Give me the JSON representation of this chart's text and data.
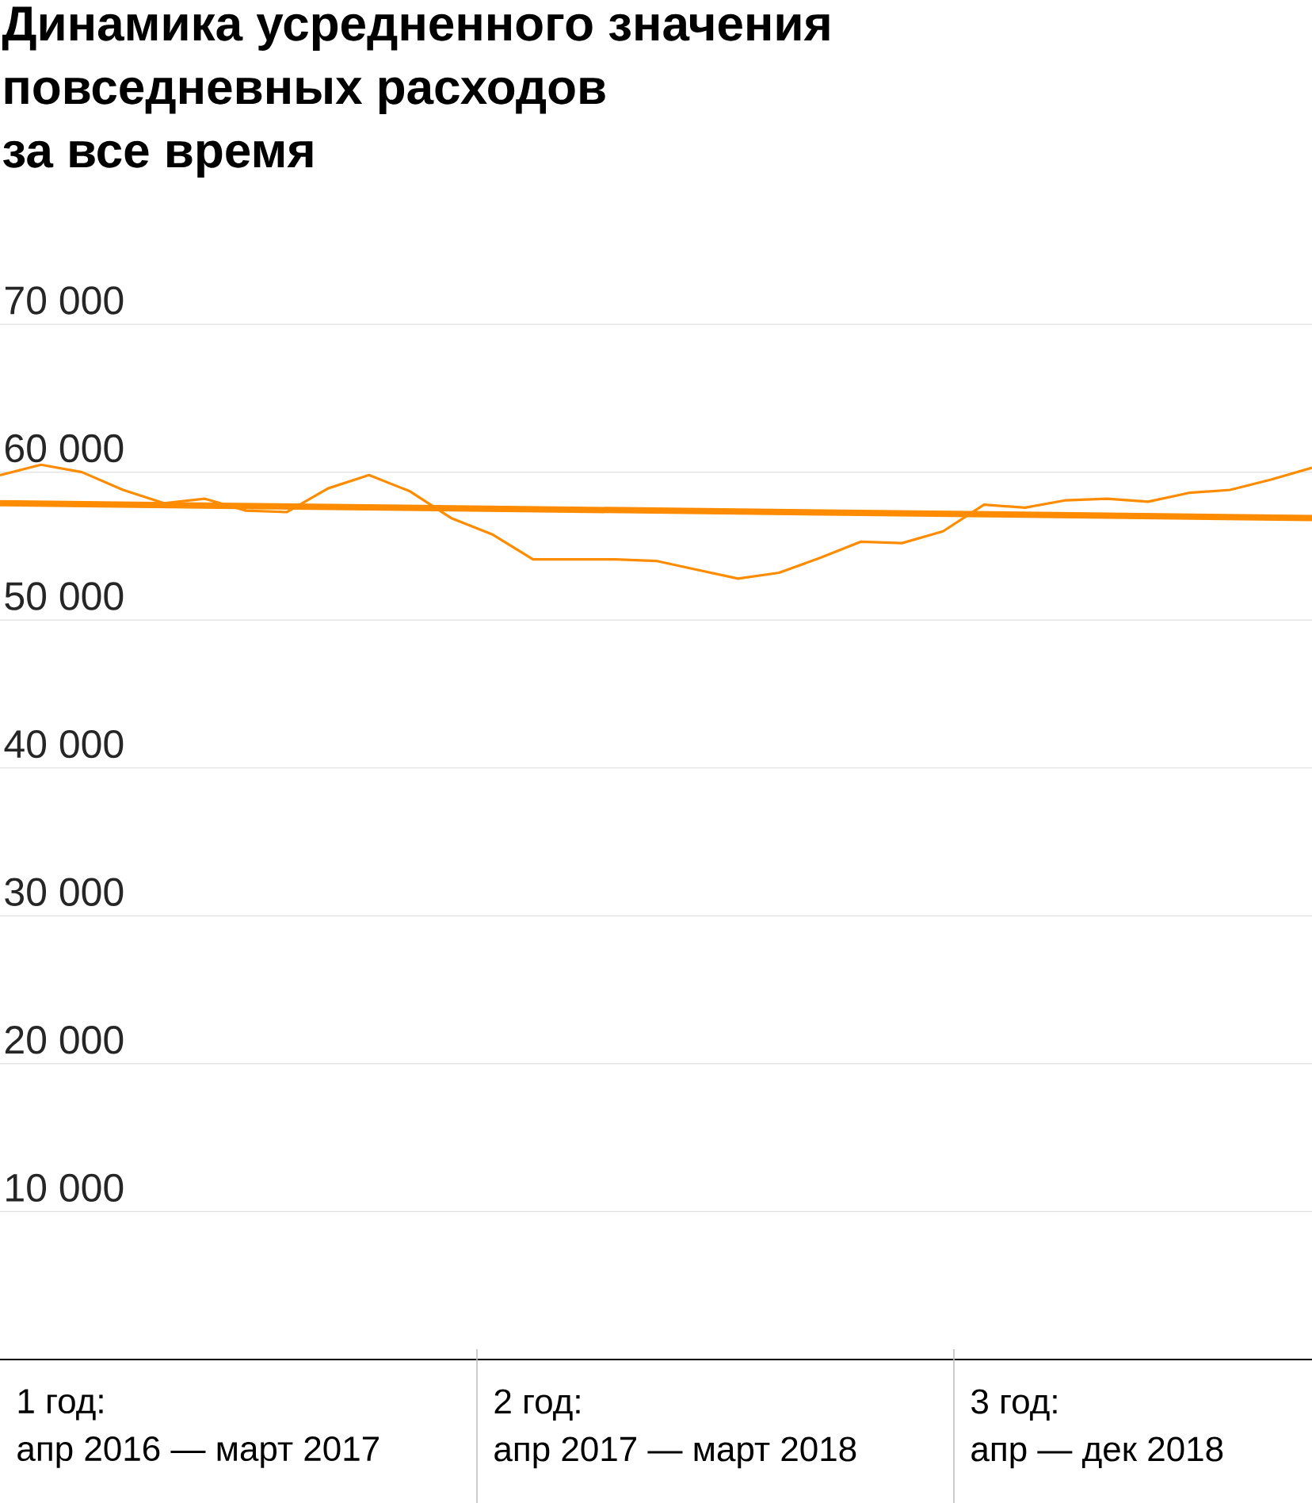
{
  "chart_data": {
    "type": "line",
    "title": "Динамика усредненного значения\nповседневных расходов\nза все время",
    "categories": [
      null,
      null,
      null,
      null,
      null,
      null,
      null,
      null,
      null,
      null,
      null,
      null,
      null,
      null,
      null,
      null,
      null,
      null,
      null,
      null,
      null,
      null,
      null,
      null,
      null,
      null,
      null,
      null,
      null,
      null,
      null,
      null,
      null
    ],
    "series": [
      {
        "color": "#ff8c00",
        "values": [
          59800,
          60500,
          60000,
          58800,
          57900,
          58200,
          57400,
          57300,
          58900,
          59800,
          58700,
          56900,
          55800,
          54100,
          54100,
          54100,
          54000,
          53400,
          52800,
          53200,
          54200,
          55300,
          55200,
          56000,
          57800,
          57600,
          58100,
          58200,
          58000,
          58600,
          58800,
          59500,
          60300
        ]
      },
      {
        "color": "#ff8c00",
        "values": [
          57900,
          null,
          null,
          null,
          null,
          null,
          null,
          null,
          null,
          null,
          null,
          null,
          null,
          null,
          null,
          null,
          null,
          null,
          null,
          null,
          null,
          null,
          null,
          null,
          null,
          null,
          null,
          null,
          null,
          null,
          null,
          null,
          56900
        ]
      }
    ],
    "ylim": [
      0,
      70000
    ],
    "yticks": [
      {
        "value": 10000,
        "label": "10 000"
      },
      {
        "value": 20000,
        "label": "20 000"
      },
      {
        "value": 30000,
        "label": "30 000"
      },
      {
        "value": 40000,
        "label": "40 000"
      },
      {
        "value": 50000,
        "label": "50 000"
      },
      {
        "value": 60000,
        "label": "60 000"
      },
      {
        "value": 70000,
        "label": "70 000"
      }
    ],
    "grid": "y",
    "annotations": [
      "1 год:\nапр 2016 — март 2017",
      "2 год:\nапр 2017 — март 2018",
      "3 год:\nапр — дек 2018"
    ]
  }
}
